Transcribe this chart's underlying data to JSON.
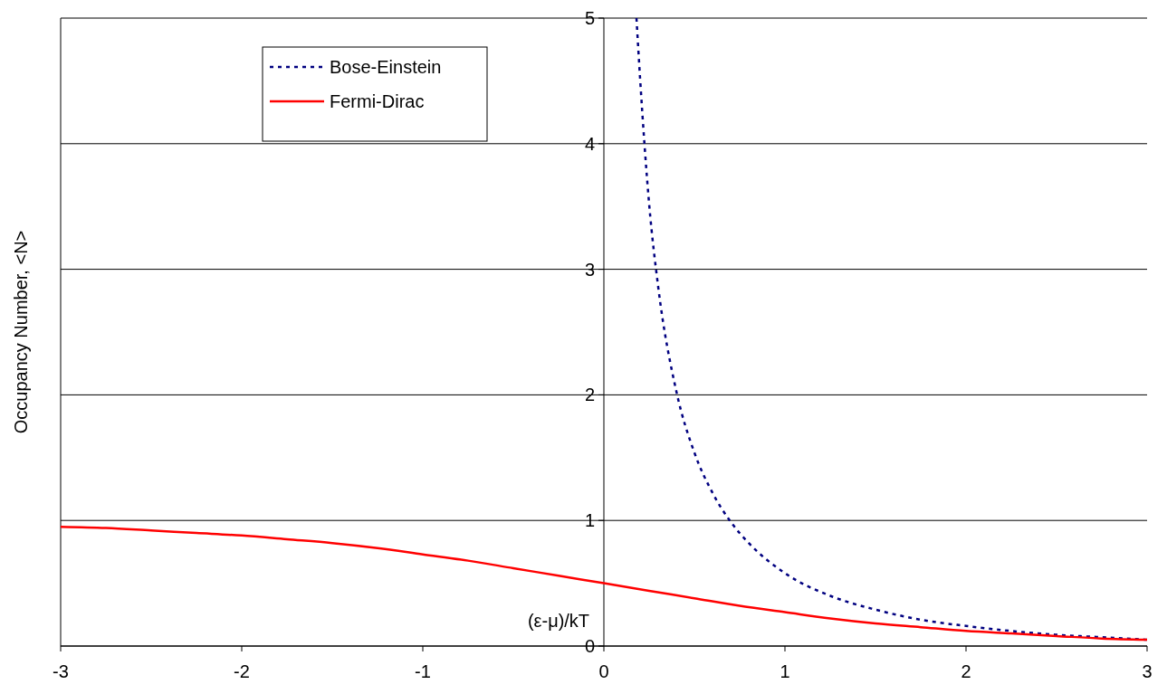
{
  "chart_data": {
    "type": "line",
    "xlabel": "(ε-μ)/kT",
    "ylabel": "Occupancy Number, <N>",
    "xlim": [
      -3,
      3
    ],
    "xticks": [
      -3,
      -2,
      -1,
      0,
      1,
      2,
      3
    ],
    "ylim": [
      0,
      5
    ],
    "yticks": [
      0,
      1,
      2,
      3,
      4,
      5
    ],
    "grid": "y",
    "legend": "top left",
    "series": [
      {
        "name": "Bose-Einstein",
        "color": "#000080",
        "line_style": "dotted",
        "x": [
          0.18,
          0.2,
          0.25,
          0.3,
          0.4,
          0.5,
          0.6,
          0.7,
          0.8,
          1,
          1.25,
          1.5,
          1.75,
          2,
          2.25,
          2.5,
          2.75,
          3
        ],
        "values": [
          5.0,
          4.52,
          3.52,
          2.86,
          2.03,
          1.54,
          1.22,
          0.99,
          0.82,
          0.58,
          0.4,
          0.29,
          0.21,
          0.16,
          0.12,
          0.09,
          0.07,
          0.05
        ]
      },
      {
        "name": "Fermi-Dirac",
        "color": "#ff0000",
        "line_style": "solid",
        "x": [
          -3,
          -2.75,
          -2.5,
          -2.25,
          -2,
          -1.75,
          -1.5,
          -1.25,
          -1,
          -0.75,
          -0.5,
          -0.25,
          0,
          0.25,
          0.5,
          0.75,
          1,
          1.25,
          1.5,
          1.75,
          2,
          2.25,
          2.5,
          2.75,
          3
        ],
        "values": [
          0.95,
          0.94,
          0.92,
          0.9,
          0.88,
          0.85,
          0.82,
          0.78,
          0.73,
          0.68,
          0.62,
          0.56,
          0.5,
          0.44,
          0.38,
          0.32,
          0.27,
          0.22,
          0.18,
          0.15,
          0.12,
          0.1,
          0.08,
          0.06,
          0.05
        ]
      }
    ]
  }
}
